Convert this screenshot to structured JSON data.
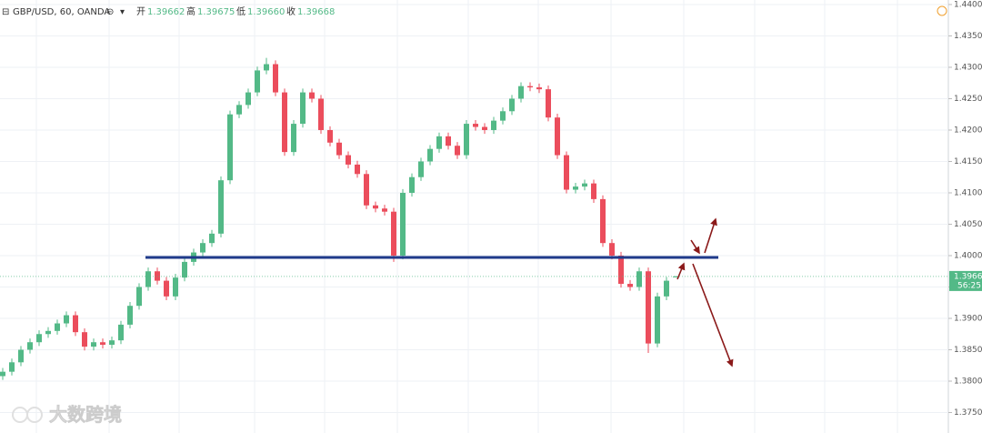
{
  "chart_data": {
    "type": "candlestick",
    "header": {
      "symbol": "GBP/USD, 60, OANDA",
      "open_label": "开",
      "open": "1.39662",
      "high_label": "高",
      "high": "1.39675",
      "low_label": "低",
      "low": "1.39660",
      "close_label": "收",
      "close": "1.39668"
    },
    "last_price_label": "1.39668",
    "countdown": "56:25",
    "watermark": "大数跨境",
    "up_color": "#53b987",
    "down_color": "#eb4d5c",
    "ylim": [
      1.37174,
      1.44072
    ],
    "yticks": [
      {
        "value": 1.44,
        "label": "1.44000"
      },
      {
        "value": 1.435,
        "label": "1.43500"
      },
      {
        "value": 1.43,
        "label": "1.43000"
      },
      {
        "value": 1.425,
        "label": "1.42500"
      },
      {
        "value": 1.42,
        "label": "1.42000"
      },
      {
        "value": 1.415,
        "label": "1.41500"
      },
      {
        "value": 1.41,
        "label": "1.41000"
      },
      {
        "value": 1.405,
        "label": "1.40500"
      },
      {
        "value": 1.4,
        "label": "1.40000"
      },
      {
        "value": 1.395,
        "label": "1.39500"
      },
      {
        "value": 1.39,
        "label": "1.39000"
      },
      {
        "value": 1.385,
        "label": "1.38500"
      },
      {
        "value": 1.38,
        "label": "1.38000"
      },
      {
        "value": 1.375,
        "label": "1.37500"
      }
    ],
    "grid": true,
    "support_level": 1.3997,
    "ohlc": [
      [
        1.3808,
        1.3821,
        1.3802,
        1.3815
      ],
      [
        1.3815,
        1.3836,
        1.3809,
        1.383
      ],
      [
        1.383,
        1.3856,
        1.3824,
        1.385
      ],
      [
        1.385,
        1.3868,
        1.3844,
        1.3862
      ],
      [
        1.3862,
        1.3881,
        1.3856,
        1.3875
      ],
      [
        1.3875,
        1.3886,
        1.3869,
        1.388
      ],
      [
        1.388,
        1.3898,
        1.3874,
        1.3892
      ],
      [
        1.3892,
        1.3911,
        1.3886,
        1.3905
      ],
      [
        1.3905,
        1.3911,
        1.3872,
        1.3878
      ],
      [
        1.3878,
        1.3884,
        1.3849,
        1.3855
      ],
      [
        1.3855,
        1.3868,
        1.3849,
        1.3862
      ],
      [
        1.3862,
        1.3868,
        1.3852,
        1.3858
      ],
      [
        1.3858,
        1.3871,
        1.3852,
        1.3865
      ],
      [
        1.3865,
        1.3896,
        1.3859,
        1.389
      ],
      [
        1.389,
        1.3926,
        1.3884,
        1.392
      ],
      [
        1.392,
        1.3956,
        1.3914,
        1.395
      ],
      [
        1.395,
        1.3981,
        1.3944,
        1.3975
      ],
      [
        1.3975,
        1.3981,
        1.3954,
        1.396
      ],
      [
        1.396,
        1.3966,
        1.3929,
        1.3935
      ],
      [
        1.3935,
        1.3971,
        1.3929,
        1.3965
      ],
      [
        1.3965,
        1.3996,
        1.3959,
        1.399
      ],
      [
        1.399,
        1.4011,
        1.3984,
        1.4005
      ],
      [
        1.4005,
        1.4026,
        1.3999,
        1.402
      ],
      [
        1.402,
        1.4041,
        1.4014,
        1.4035
      ],
      [
        1.4035,
        1.4126,
        1.4029,
        1.412
      ],
      [
        1.412,
        1.4231,
        1.4114,
        1.4225
      ],
      [
        1.4225,
        1.4246,
        1.4219,
        1.424
      ],
      [
        1.424,
        1.4266,
        1.4234,
        1.426
      ],
      [
        1.426,
        1.4301,
        1.4254,
        1.4295
      ],
      [
        1.4295,
        1.4315,
        1.4289,
        1.4305
      ],
      [
        1.4305,
        1.4311,
        1.4254,
        1.426
      ],
      [
        1.426,
        1.4266,
        1.4159,
        1.4165
      ],
      [
        1.4165,
        1.4216,
        1.4159,
        1.421
      ],
      [
        1.421,
        1.4266,
        1.4204,
        1.426
      ],
      [
        1.426,
        1.4266,
        1.4244,
        1.425
      ],
      [
        1.425,
        1.4256,
        1.4194,
        1.42
      ],
      [
        1.42,
        1.4206,
        1.4174,
        1.418
      ],
      [
        1.418,
        1.4186,
        1.4154,
        1.416
      ],
      [
        1.416,
        1.4166,
        1.4139,
        1.4145
      ],
      [
        1.4145,
        1.4151,
        1.4124,
        1.413
      ],
      [
        1.413,
        1.4136,
        1.4074,
        1.408
      ],
      [
        1.408,
        1.4086,
        1.4069,
        1.4075
      ],
      [
        1.4075,
        1.4081,
        1.4064,
        1.407
      ],
      [
        1.407,
        1.4076,
        1.399,
        1.4
      ],
      [
        1.4,
        1.4106,
        1.3994,
        1.41
      ],
      [
        1.41,
        1.4131,
        1.4094,
        1.4125
      ],
      [
        1.4125,
        1.4156,
        1.4119,
        1.415
      ],
      [
        1.415,
        1.4176,
        1.4144,
        1.417
      ],
      [
        1.417,
        1.4196,
        1.4164,
        1.419
      ],
      [
        1.419,
        1.4196,
        1.4169,
        1.4175
      ],
      [
        1.4175,
        1.4181,
        1.4154,
        1.416
      ],
      [
        1.416,
        1.4216,
        1.4154,
        1.421
      ],
      [
        1.421,
        1.4216,
        1.4199,
        1.4205
      ],
      [
        1.4205,
        1.4211,
        1.4194,
        1.42
      ],
      [
        1.42,
        1.4221,
        1.4194,
        1.4215
      ],
      [
        1.4215,
        1.4236,
        1.4209,
        1.423
      ],
      [
        1.423,
        1.4256,
        1.4224,
        1.425
      ],
      [
        1.425,
        1.4276,
        1.4244,
        1.427
      ],
      [
        1.427,
        1.4276,
        1.4262,
        1.4268
      ],
      [
        1.4268,
        1.4274,
        1.4259,
        1.4265
      ],
      [
        1.4265,
        1.4271,
        1.4214,
        1.422
      ],
      [
        1.422,
        1.4226,
        1.4154,
        1.416
      ],
      [
        1.416,
        1.4166,
        1.4099,
        1.4105
      ],
      [
        1.4105,
        1.4116,
        1.4099,
        1.411
      ],
      [
        1.411,
        1.4121,
        1.4104,
        1.4115
      ],
      [
        1.4115,
        1.4121,
        1.4084,
        1.409
      ],
      [
        1.409,
        1.4096,
        1.4014,
        1.402
      ],
      [
        1.402,
        1.4026,
        1.3994,
        1.4
      ],
      [
        1.4,
        1.4006,
        1.3949,
        1.3955
      ],
      [
        1.3955,
        1.3961,
        1.3944,
        1.395
      ],
      [
        1.395,
        1.3981,
        1.3944,
        1.3975
      ],
      [
        1.3975,
        1.3981,
        1.3845,
        1.386
      ],
      [
        1.386,
        1.3941,
        1.3854,
        1.3935
      ],
      [
        1.3935,
        1.3966,
        1.3929,
        1.396
      ],
      [
        1.39662,
        1.39675,
        1.3966,
        1.39668
      ]
    ]
  }
}
